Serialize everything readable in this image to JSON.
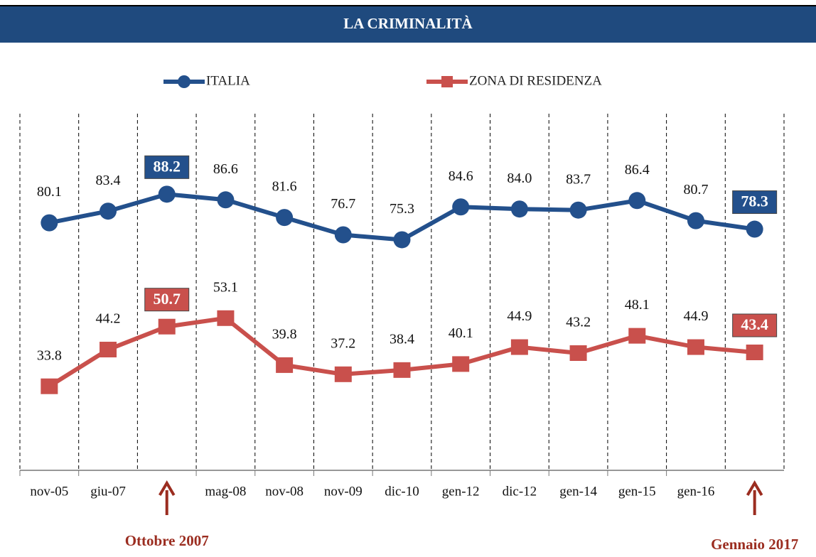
{
  "chart_data": {
    "type": "line",
    "title": "LA CRIMINALITÀ",
    "categories": [
      "nov-05",
      "giu-07",
      null,
      "mag-08",
      "nov-08",
      "nov-09",
      "dic-10",
      "gen-12",
      "dic-12",
      "gen-14",
      "gen-15",
      "gen-16",
      null
    ],
    "series": [
      {
        "name": "ITALIA",
        "color": "#23508c",
        "values": [
          80.1,
          83.4,
          88.2,
          86.6,
          81.6,
          76.7,
          75.3,
          84.6,
          84.0,
          83.7,
          86.4,
          80.7,
          78.3
        ],
        "value_labels": [
          "80.1",
          "83.4",
          "88.2",
          "86.6",
          "81.6",
          "76.7",
          "75.3",
          "84.6",
          "84.0",
          "83.7",
          "86.4",
          "80.7",
          "78.3"
        ]
      },
      {
        "name": "ZONA DI RESIDENZA",
        "color": "#c9504c",
        "values": [
          33.8,
          44.2,
          50.7,
          53.1,
          39.8,
          37.2,
          38.4,
          40.1,
          44.9,
          43.2,
          48.1,
          44.9,
          43.4
        ],
        "value_labels": [
          "33.8",
          "44.2",
          "50.7",
          "53.1",
          "39.8",
          "37.2",
          "38.4",
          "40.1",
          "44.9",
          "43.2",
          "48.1",
          "44.9",
          "43.4"
        ]
      }
    ],
    "ylim": [
      10,
      110
    ],
    "annotations": [
      "Ottobre 2007",
      "Gennaio 2017"
    ]
  }
}
